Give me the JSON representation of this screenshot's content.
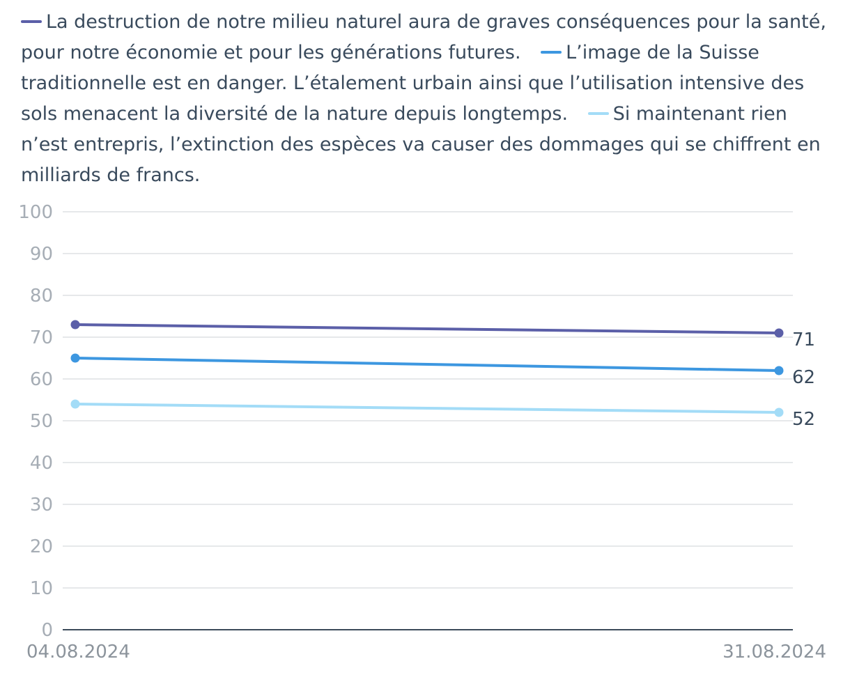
{
  "chart_data": {
    "type": "line",
    "x": [
      "04.08.2024",
      "31.08.2024"
    ],
    "series": [
      {
        "name": "La destruction de notre milieu naturel aura de graves conséquences pour la santé, pour notre économie et pour les générations futures.",
        "values": [
          73,
          71
        ],
        "color": "#5b5fa8",
        "end_label": "71"
      },
      {
        "name": "L’image de la Suisse traditionnelle est en danger. L’étalement urbain ainsi que l’utilisation intensive des sols menacent la diversité de la nature depuis longtemps.",
        "values": [
          65,
          62
        ],
        "color": "#3d97e0",
        "end_label": "62"
      },
      {
        "name": "Si maintenant rien n’est entrepris, l’extinction des espèces va causer des dommages qui se chiffrent en milliards de francs.",
        "values": [
          54,
          52
        ],
        "color": "#a3dcf7",
        "end_label": "52"
      }
    ],
    "yticks": [
      "0",
      "10",
      "20",
      "30",
      "40",
      "50",
      "60",
      "70",
      "80",
      "90",
      "100"
    ],
    "ylim": [
      0,
      100
    ],
    "grid": true,
    "legend": "top",
    "title": "",
    "xlabel": "",
    "ylabel": ""
  }
}
